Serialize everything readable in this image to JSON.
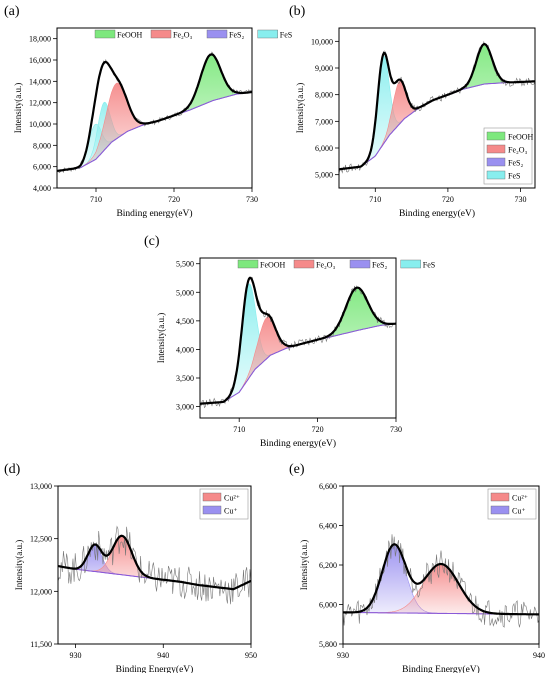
{
  "chart_data": [
    {
      "id": "a",
      "type": "line",
      "panel_label": "(a)",
      "xlabel": "Binding energy(eV)",
      "ylabel": "Intensity(a.u.)",
      "xlim": [
        705,
        730
      ],
      "ylim": [
        4000,
        19000
      ],
      "xticks": [
        710,
        720,
        730
      ],
      "xtick_labels": [
        "710",
        "720",
        "730"
      ],
      "yticks": [
        4000,
        6000,
        8000,
        10000,
        12000,
        14000,
        16000,
        18000
      ],
      "ytick_labels": [
        "4,000",
        "6,000",
        "8,000",
        "10,000",
        "12,000",
        "14,000",
        "16,000",
        "18,000"
      ],
      "legend": {
        "placement": "top",
        "layout": "row",
        "entries": [
          {
            "label": "FeOOH",
            "color": "#7ee87e"
          },
          {
            "label": "Fe₂O₃",
            "color": "#f58a8a"
          },
          {
            "label": "FeS₂",
            "color": "#9a90f0"
          },
          {
            "label": "FeS",
            "color": "#88eeee"
          }
        ]
      },
      "background": {
        "x": [
          705,
          708,
          710,
          712,
          714,
          716,
          718,
          720,
          722,
          725,
          728,
          730
        ],
        "y": [
          5600,
          5900,
          6700,
          8300,
          9300,
          9900,
          10300,
          10800,
          11300,
          12200,
          12800,
          13000
        ]
      },
      "peaks": [
        {
          "name": "FeS",
          "center": 709.9,
          "height": 3300,
          "width": 0.8,
          "color": "#88eeee"
        },
        {
          "name": "FeS",
          "center": 711.0,
          "height": 4500,
          "width": 0.8,
          "color": "#88eeee"
        },
        {
          "name": "Fe₂O₃",
          "center": 712.6,
          "height": 5200,
          "width": 1.3,
          "color": "#f58a8a"
        },
        {
          "name": "FeOOH",
          "center": 724.7,
          "height": 4400,
          "width": 1.3,
          "color": "#7ee87e"
        }
      ],
      "raw_noise": 250
    },
    {
      "id": "b",
      "type": "line",
      "panel_label": "(b)",
      "xlabel": "Binding energy(eV)",
      "ylabel": "Intensity(a.u.)",
      "xlim": [
        705,
        732
      ],
      "ylim": [
        4500,
        10500
      ],
      "xticks": [
        710,
        720,
        730
      ],
      "xtick_labels": [
        "710",
        "720",
        "730"
      ],
      "yticks": [
        5000,
        6000,
        7000,
        8000,
        9000,
        10000
      ],
      "ytick_labels": [
        "5,000",
        "6,000",
        "7,000",
        "8,000",
        "9,000",
        "10,000"
      ],
      "legend": {
        "placement": "bottom-right",
        "layout": "column",
        "entries": [
          {
            "label": "FeOOH",
            "color": "#7ee87e"
          },
          {
            "label": "Fe₂O₃",
            "color": "#f58a8a"
          },
          {
            "label": "FeS₂",
            "color": "#9a90f0"
          },
          {
            "label": "FeS",
            "color": "#88eeee"
          }
        ]
      },
      "background": {
        "x": [
          705,
          708,
          710,
          712,
          714,
          716,
          718,
          720,
          722,
          725,
          728,
          732
        ],
        "y": [
          5200,
          5300,
          5700,
          6500,
          7100,
          7500,
          7800,
          8000,
          8200,
          8400,
          8450,
          8500
        ]
      },
      "peaks": [
        {
          "name": "FeS",
          "center": 711.1,
          "height": 3300,
          "width": 0.8,
          "color": "#88eeee"
        },
        {
          "name": "Fe₂O₃",
          "center": 713.3,
          "height": 1600,
          "width": 0.9,
          "color": "#f58a8a"
        },
        {
          "name": "FeOOH",
          "center": 725.0,
          "height": 1500,
          "width": 1.1,
          "color": "#7ee87e"
        }
      ],
      "raw_noise": 150
    },
    {
      "id": "c",
      "type": "line",
      "panel_label": "(c)",
      "xlabel": "Binding energy(eV)",
      "ylabel": "Intensity(a.u.)",
      "xlim": [
        705,
        730
      ],
      "ylim": [
        2800,
        5600
      ],
      "xticks": [
        710,
        720,
        730
      ],
      "xtick_labels": [
        "710",
        "720",
        "730"
      ],
      "yticks": [
        3000,
        3500,
        4000,
        4500,
        5000,
        5500
      ],
      "ytick_labels": [
        "3,000",
        "3,500",
        "4,000",
        "4,500",
        "5,000",
        "5,500"
      ],
      "legend": {
        "placement": "top",
        "layout": "row",
        "entries": [
          {
            "label": "FeOOH",
            "color": "#7ee87e"
          },
          {
            "label": "Fe₂O₃",
            "color": "#f58a8a"
          },
          {
            "label": "FeS₂",
            "color": "#9a90f0"
          },
          {
            "label": "FeS",
            "color": "#88eeee"
          }
        ]
      },
      "background": {
        "x": [
          705,
          708,
          710,
          712,
          714,
          716,
          718,
          720,
          722,
          725,
          728,
          730
        ],
        "y": [
          3050,
          3080,
          3250,
          3650,
          3900,
          4020,
          4100,
          4170,
          4230,
          4330,
          4420,
          4450
        ]
      },
      "peaks": [
        {
          "name": "FeS",
          "center": 711.2,
          "height": 1650,
          "width": 0.9,
          "color": "#88eeee"
        },
        {
          "name": "Fe₂O₃",
          "center": 713.5,
          "height": 720,
          "width": 1.1,
          "color": "#f58a8a"
        },
        {
          "name": "FeOOH",
          "center": 725.0,
          "height": 750,
          "width": 1.4,
          "color": "#7ee87e"
        }
      ],
      "raw_noise": 80
    },
    {
      "id": "d",
      "type": "line",
      "panel_label": "(d)",
      "xlabel": "Binding Energy(eV)",
      "ylabel": "Intensity(a.u.)",
      "xlim": [
        928,
        950
      ],
      "ylim": [
        11500,
        13000
      ],
      "xticks": [
        930,
        940,
        950
      ],
      "xtick_labels": [
        "930",
        "940",
        "950"
      ],
      "yticks": [
        11500,
        12000,
        12500,
        13000
      ],
      "ytick_labels": [
        "11,500",
        "12,000",
        "12,500",
        "13,000"
      ],
      "legend": {
        "placement": "top-right",
        "layout": "column",
        "entries": [
          {
            "label": "Cu²⁺",
            "color": "#f58a8a"
          },
          {
            "label": "Cu⁺",
            "color": "#9a90f0"
          }
        ]
      },
      "background": {
        "x": [
          928,
          930,
          932,
          934,
          936,
          938,
          940,
          942,
          944,
          946,
          948,
          950
        ],
        "y": [
          12240,
          12210,
          12190,
          12170,
          12150,
          12130,
          12110,
          12090,
          12060,
          12040,
          12020,
          12100
        ]
      },
      "peaks": [
        {
          "name": "Cu⁺",
          "center": 932.2,
          "height": 250,
          "width": 0.8,
          "color": "#9a90f0"
        },
        {
          "name": "Cu²⁺",
          "center": 935.3,
          "height": 370,
          "width": 1.1,
          "color": "#f58a8a"
        }
      ],
      "raw_noise": 160
    },
    {
      "id": "e",
      "type": "line",
      "panel_label": "(e)",
      "xlabel": "Binding Energy(eV)",
      "ylabel": "Intensity(a.u.)",
      "xlim": [
        930,
        940
      ],
      "ylim": [
        5800,
        6600
      ],
      "xticks": [
        930,
        940
      ],
      "xtick_labels": [
        "930",
        "940"
      ],
      "yticks": [
        5800,
        6000,
        6200,
        6400,
        6600
      ],
      "ytick_labels": [
        "5,800",
        "6,000",
        "6,200",
        "6,400",
        "6,600"
      ],
      "legend": {
        "placement": "top-right",
        "layout": "column",
        "entries": [
          {
            "label": "Cu²⁺",
            "color": "#f58a8a"
          },
          {
            "label": "Cu⁺",
            "color": "#9a90f0"
          }
        ]
      },
      "background": {
        "x": [
          930,
          932,
          934,
          936,
          938,
          940
        ],
        "y": [
          5960,
          5958,
          5956,
          5954,
          5952,
          5950
        ]
      },
      "peaks": [
        {
          "name": "Cu⁺",
          "center": 932.6,
          "height": 340,
          "width": 0.6,
          "color": "#9a90f0"
        },
        {
          "name": "Cu²⁺",
          "center": 935.0,
          "height": 250,
          "width": 0.9,
          "color": "#f58a8a"
        }
      ],
      "raw_noise": 70
    }
  ]
}
